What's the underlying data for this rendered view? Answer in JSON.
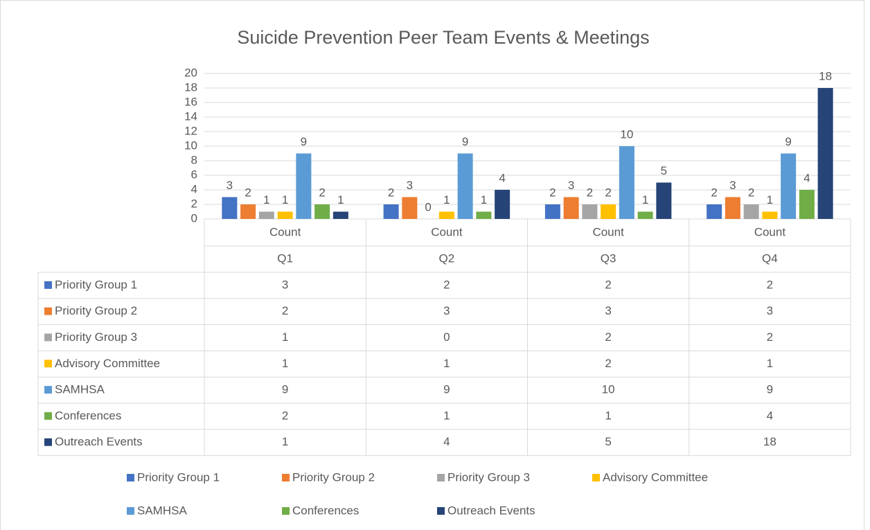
{
  "chart_data": {
    "type": "bar",
    "title": "Suicide Prevention Peer Team Events & Meetings",
    "categories": [
      "Q1",
      "Q2",
      "Q3",
      "Q4"
    ],
    "category_sublabels": [
      "Count",
      "Count",
      "Count",
      "Count"
    ],
    "series": [
      {
        "name": "Priority Group 1",
        "color": "#4472c4",
        "values": [
          3,
          2,
          2,
          2
        ]
      },
      {
        "name": "Priority Group 2",
        "color": "#ed7d31",
        "values": [
          2,
          3,
          3,
          3
        ]
      },
      {
        "name": "Priority Group 3",
        "color": "#a5a5a5",
        "values": [
          1,
          0,
          2,
          2
        ]
      },
      {
        "name": "Advisory Committee",
        "color": "#ffc000",
        "values": [
          1,
          1,
          2,
          1
        ]
      },
      {
        "name": "SAMHSA",
        "color": "#5b9bd5",
        "values": [
          9,
          9,
          10,
          9
        ]
      },
      {
        "name": "Conferences",
        "color": "#70ad47",
        "values": [
          2,
          1,
          1,
          4
        ]
      },
      {
        "name": "Outreach Events",
        "color": "#264478",
        "values": [
          1,
          4,
          5,
          18
        ]
      }
    ],
    "ylim": [
      0,
      20
    ],
    "yticks": [
      0,
      2,
      4,
      6,
      8,
      10,
      12,
      14,
      16,
      18,
      20
    ],
    "grid": true,
    "data_labels": true,
    "data_table": true,
    "legend": "bottom"
  }
}
